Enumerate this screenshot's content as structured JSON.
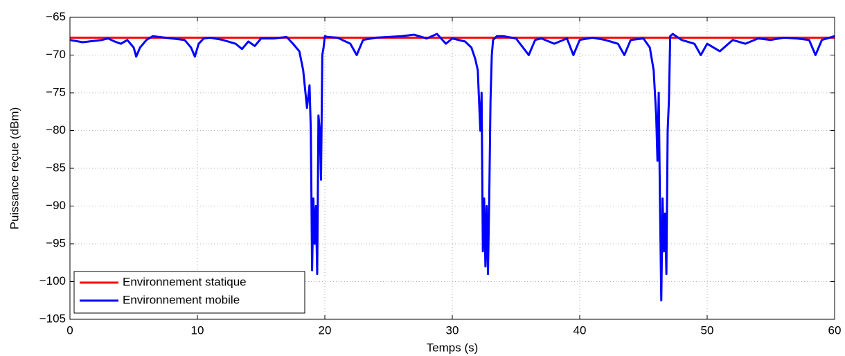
{
  "chart_data": {
    "type": "line",
    "xlabel": "Temps (s)",
    "ylabel": "Puissance reçue (dBm)",
    "xlim": [
      0,
      60
    ],
    "xticks": [
      0,
      10,
      20,
      30,
      40,
      50,
      60
    ],
    "ylim": [
      -105,
      -65
    ],
    "yticks": [
      {
        "value": -65,
        "label": "−65"
      },
      {
        "value": -70,
        "label": "−70"
      },
      {
        "value": -75,
        "label": "−75"
      },
      {
        "value": -80,
        "label": "−80"
      },
      {
        "value": -85,
        "label": "−85"
      },
      {
        "value": -90,
        "label": "−90"
      },
      {
        "value": -95,
        "label": "−95"
      },
      {
        "value": -100,
        "label": "−100"
      },
      {
        "value": -105,
        "label": "−105"
      }
    ],
    "grid": true,
    "legend": "lower left",
    "series": [
      {
        "name": "Environnement statique",
        "color": "#ff0000",
        "x": [
          0,
          60
        ],
        "values": [
          -67.7,
          -67.7
        ]
      },
      {
        "name": "Environnement mobile",
        "color": "#0000ff",
        "x": [
          0,
          1,
          1.5,
          2.5,
          3,
          3.5,
          4,
          4.5,
          5,
          5.2,
          5.5,
          6,
          6.5,
          7,
          8,
          9,
          9.5,
          9.8,
          10.1,
          10.5,
          11,
          12,
          13,
          13.5,
          14,
          14.5,
          15,
          16,
          17,
          17.5,
          18,
          18.3,
          18.6,
          18.8,
          18.9,
          19.0,
          19.1,
          19.2,
          19.3,
          19.4,
          19.5,
          19.6,
          19.7,
          19.8,
          19.9,
          20.0,
          20.2,
          21,
          22,
          22.5,
          23,
          24,
          25,
          26,
          27,
          28,
          28.8,
          29.5,
          30,
          31,
          31.5,
          31.8,
          32.0,
          32.2,
          32.3,
          32.4,
          32.5,
          32.6,
          32.7,
          32.8,
          32.9,
          33.0,
          33.1,
          33.2,
          33.5,
          34,
          35,
          36,
          36.5,
          37,
          38,
          39,
          39.5,
          40,
          41,
          42,
          43,
          43.5,
          44,
          45,
          45.5,
          45.8,
          46.0,
          46.1,
          46.2,
          46.3,
          46.4,
          46.5,
          46.6,
          46.7,
          46.8,
          46.9,
          47.0,
          47.1,
          47.3,
          48,
          49,
          49.5,
          50,
          51,
          52,
          53,
          54,
          55,
          56,
          57,
          58,
          58.5,
          59,
          60
        ],
        "values": [
          -68.0,
          -68.3,
          -68.2,
          -68.0,
          -67.8,
          -68.2,
          -68.5,
          -68.0,
          -69.0,
          -70.2,
          -69.0,
          -68.0,
          -67.5,
          -67.6,
          -67.8,
          -68.0,
          -69.0,
          -70.2,
          -68.5,
          -67.8,
          -67.7,
          -68.0,
          -68.5,
          -69.2,
          -68.2,
          -68.8,
          -67.8,
          -67.8,
          -67.6,
          -68.5,
          -69.5,
          -72.0,
          -77.0,
          -74.0,
          -80.0,
          -98.5,
          -89.0,
          -95.0,
          -90.0,
          -99.0,
          -78.0,
          -80.0,
          -86.5,
          -70.0,
          -69.0,
          -67.5,
          -67.6,
          -67.7,
          -68.5,
          -70.0,
          -68.0,
          -67.7,
          -67.6,
          -67.5,
          -67.3,
          -67.8,
          -67.2,
          -68.5,
          -67.8,
          -68.2,
          -69.0,
          -70.5,
          -72.0,
          -80.0,
          -75.0,
          -96.0,
          -89.0,
          -98.0,
          -90.0,
          -99.0,
          -89.0,
          -76.0,
          -70.0,
          -68.0,
          -67.5,
          -67.5,
          -67.8,
          -70.0,
          -68.0,
          -67.8,
          -68.5,
          -67.8,
          -70.0,
          -68.0,
          -67.7,
          -68.0,
          -68.5,
          -70.0,
          -68.0,
          -67.8,
          -69.0,
          -72.0,
          -78.0,
          -84.0,
          -75.0,
          -90.0,
          -102.5,
          -89.0,
          -96.0,
          -91.0,
          -99.0,
          -80.0,
          -76.0,
          -67.5,
          -67.2,
          -68.0,
          -68.5,
          -70.0,
          -68.5,
          -69.5,
          -68.0,
          -68.5,
          -67.8,
          -68.0,
          -67.7,
          -67.8,
          -68.0,
          -70.0,
          -68.0,
          -67.5
        ]
      }
    ]
  }
}
